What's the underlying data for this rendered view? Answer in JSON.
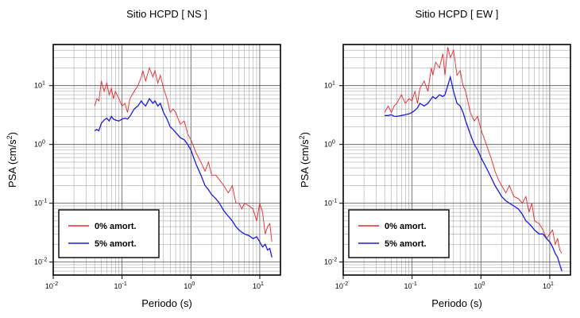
{
  "chart_data": [
    {
      "type": "line",
      "title": "Sitio HCPD [ NS ]",
      "xlabel": "Periodo (s)",
      "ylabel": "PSA (cm/s²)",
      "x_scale": "log",
      "y_scale": "log",
      "xlim": [
        0.01,
        20
      ],
      "ylim": [
        0.006,
        50
      ],
      "grid": true,
      "legend_position": "bottom-left",
      "x_ticks": [
        {
          "base": "10",
          "exp": "-2"
        },
        {
          "base": "10",
          "exp": "-1"
        },
        {
          "base": "10",
          "exp": "0"
        },
        {
          "base": "10",
          "exp": "1"
        }
      ],
      "y_ticks": [
        {
          "base": "10",
          "exp": "-2"
        },
        {
          "base": "10",
          "exp": "-1"
        },
        {
          "base": "10",
          "exp": "0"
        },
        {
          "base": "10",
          "exp": "1"
        }
      ],
      "series": [
        {
          "name": "0% amort.",
          "color": "#e8262a",
          "x": [
            0.04,
            0.043,
            0.046,
            0.05,
            0.055,
            0.06,
            0.065,
            0.07,
            0.075,
            0.08,
            0.09,
            0.1,
            0.11,
            0.12,
            0.13,
            0.15,
            0.17,
            0.19,
            0.2,
            0.22,
            0.25,
            0.28,
            0.3,
            0.33,
            0.36,
            0.4,
            0.45,
            0.5,
            0.55,
            0.6,
            0.7,
            0.8,
            0.9,
            1.0,
            1.2,
            1.4,
            1.6,
            1.8,
            2.0,
            2.3,
            2.6,
            3.0,
            3.5,
            4.0,
            4.5,
            5.0,
            5.5,
            6.0,
            7.0,
            8.0,
            9.0,
            10,
            11,
            12,
            13,
            14,
            15
          ],
          "y": [
            4.5,
            6.0,
            5.5,
            12,
            8,
            11,
            7,
            9,
            6,
            8,
            6,
            4.5,
            5,
            3.5,
            6,
            8,
            10,
            14,
            18,
            12,
            20,
            14,
            18,
            11,
            15,
            9,
            6,
            3.5,
            4,
            3.5,
            2.2,
            2.5,
            1.5,
            1.2,
            0.7,
            0.5,
            0.35,
            0.5,
            0.3,
            0.3,
            0.25,
            0.2,
            0.15,
            0.2,
            0.1,
            0.1,
            0.08,
            0.1,
            0.09,
            0.08,
            0.05,
            0.1,
            0.07,
            0.03,
            0.04,
            0.045,
            0.022
          ]
        },
        {
          "name": "5% amort.",
          "color": "#1a1adc",
          "x": [
            0.04,
            0.043,
            0.046,
            0.05,
            0.055,
            0.06,
            0.065,
            0.07,
            0.075,
            0.08,
            0.09,
            0.1,
            0.11,
            0.12,
            0.13,
            0.15,
            0.17,
            0.19,
            0.2,
            0.22,
            0.25,
            0.28,
            0.3,
            0.33,
            0.36,
            0.4,
            0.45,
            0.5,
            0.55,
            0.6,
            0.7,
            0.8,
            0.9,
            1.0,
            1.2,
            1.4,
            1.6,
            1.8,
            2.0,
            2.3,
            2.6,
            3.0,
            3.5,
            4.0,
            4.5,
            5.0,
            5.5,
            6.0,
            7.0,
            8.0,
            9.0,
            10,
            11,
            12,
            13,
            14,
            15
          ],
          "y": [
            1.7,
            1.8,
            1.7,
            2.3,
            2.6,
            2.8,
            2.5,
            3.0,
            2.7,
            2.6,
            2.5,
            2.7,
            2.8,
            2.7,
            3.0,
            4.0,
            4.5,
            5.5,
            5.0,
            4.5,
            6.0,
            5.0,
            5.5,
            4.5,
            5.0,
            3.5,
            2.7,
            2.0,
            1.8,
            1.6,
            1.3,
            1.2,
            1.0,
            0.8,
            0.45,
            0.3,
            0.2,
            0.17,
            0.14,
            0.12,
            0.1,
            0.075,
            0.06,
            0.05,
            0.04,
            0.035,
            0.032,
            0.03,
            0.028,
            0.025,
            0.027,
            0.022,
            0.018,
            0.02,
            0.016,
            0.017,
            0.012
          ]
        }
      ]
    },
    {
      "type": "line",
      "title": "Sitio HCPD [ EW ]",
      "xlabel": "Periodo (s)",
      "ylabel": "PSA (cm/s²)",
      "x_scale": "log",
      "y_scale": "log",
      "xlim": [
        0.01,
        20
      ],
      "ylim": [
        0.006,
        50
      ],
      "grid": true,
      "legend_position": "bottom-left",
      "x_ticks": [
        {
          "base": "10",
          "exp": "-2"
        },
        {
          "base": "10",
          "exp": "-1"
        },
        {
          "base": "10",
          "exp": "0"
        },
        {
          "base": "10",
          "exp": "1"
        }
      ],
      "y_ticks": [
        {
          "base": "10",
          "exp": "-2"
        },
        {
          "base": "10",
          "exp": "-1"
        },
        {
          "base": "10",
          "exp": "0"
        },
        {
          "base": "10",
          "exp": "1"
        }
      ],
      "series": [
        {
          "name": "0% amort.",
          "color": "#e8262a",
          "x": [
            0.04,
            0.045,
            0.05,
            0.055,
            0.06,
            0.07,
            0.08,
            0.09,
            0.1,
            0.11,
            0.12,
            0.13,
            0.15,
            0.17,
            0.19,
            0.2,
            0.22,
            0.25,
            0.28,
            0.3,
            0.33,
            0.36,
            0.4,
            0.45,
            0.5,
            0.55,
            0.6,
            0.7,
            0.8,
            0.9,
            1.0,
            1.2,
            1.4,
            1.6,
            1.8,
            2.0,
            2.3,
            2.6,
            3.0,
            3.5,
            4.0,
            4.5,
            5.0,
            5.5,
            6.0,
            7.0,
            8.0,
            9.0,
            10,
            11,
            12,
            13,
            14,
            15
          ],
          "y": [
            3.5,
            4.5,
            3.5,
            4.5,
            5,
            7,
            5,
            6,
            5.5,
            8,
            5,
            9,
            12,
            8,
            20,
            15,
            25,
            20,
            35,
            15,
            45,
            30,
            40,
            15,
            18,
            10,
            8,
            3.5,
            2.5,
            3.0,
            1.8,
            1.0,
            0.6,
            0.35,
            0.25,
            0.2,
            0.15,
            0.2,
            0.13,
            0.12,
            0.1,
            0.13,
            0.07,
            0.1,
            0.05,
            0.045,
            0.035,
            0.025,
            0.03,
            0.035,
            0.02,
            0.025,
            0.016,
            0.014
          ]
        },
        {
          "name": "5% amort.",
          "color": "#1a1adc",
          "x": [
            0.04,
            0.045,
            0.05,
            0.055,
            0.06,
            0.07,
            0.08,
            0.09,
            0.1,
            0.11,
            0.12,
            0.13,
            0.15,
            0.17,
            0.19,
            0.2,
            0.22,
            0.25,
            0.28,
            0.3,
            0.33,
            0.36,
            0.4,
            0.45,
            0.5,
            0.55,
            0.6,
            0.7,
            0.8,
            0.9,
            1.0,
            1.2,
            1.4,
            1.6,
            1.8,
            2.0,
            2.3,
            2.6,
            3.0,
            3.5,
            4.0,
            4.5,
            5.0,
            5.5,
            6.0,
            7.0,
            8.0,
            9.0,
            10,
            11,
            12,
            13,
            14,
            15
          ],
          "y": [
            3.1,
            3.1,
            3.2,
            3.0,
            3.0,
            3.1,
            3.2,
            3.3,
            3.5,
            3.8,
            4.2,
            5.0,
            4.5,
            5.0,
            6.0,
            6.5,
            6.0,
            7.0,
            6.5,
            7.0,
            10,
            14,
            8,
            5,
            4.5,
            3.5,
            2.5,
            1.5,
            1.0,
            0.8,
            0.6,
            0.4,
            0.28,
            0.2,
            0.16,
            0.13,
            0.11,
            0.1,
            0.09,
            0.08,
            0.065,
            0.05,
            0.045,
            0.04,
            0.035,
            0.03,
            0.03,
            0.025,
            0.022,
            0.018,
            0.014,
            0.012,
            0.009,
            0.007
          ]
        }
      ]
    }
  ]
}
